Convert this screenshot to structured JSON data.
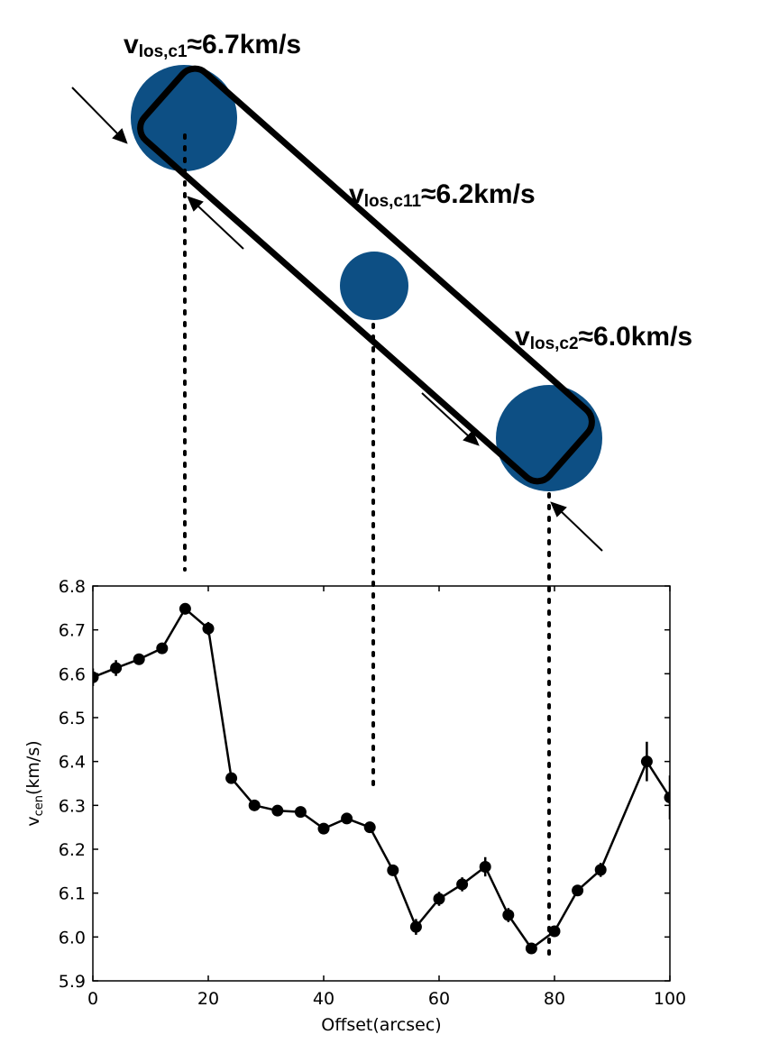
{
  "annotations": [
    {
      "v": "v",
      "sub": "los,c1",
      "value": "≈6.7km/s"
    },
    {
      "v": "v",
      "sub": "los,c11",
      "value": "≈6.2km/s"
    },
    {
      "v": "v",
      "sub": "los,c2",
      "value": "≈6.0km/s"
    }
  ],
  "colors": {
    "clump": "#0d4f84",
    "line": "#000000"
  },
  "chart_data": {
    "type": "line",
    "xlabel": "Offset(arcsec)",
    "ylabel_main": "v",
    "ylabel_sub": "cen",
    "ylabel_unit": "(km/s)",
    "xlim": [
      0,
      100
    ],
    "ylim": [
      5.9,
      6.8
    ],
    "xticks": [
      "0",
      "20",
      "40",
      "60",
      "80",
      "100"
    ],
    "yticks": [
      "5.9",
      "6.0",
      "6.1",
      "6.2",
      "6.3",
      "6.4",
      "6.5",
      "6.6",
      "6.7",
      "6.8"
    ],
    "grid": false,
    "series": [
      {
        "x": [
          0,
          4,
          8,
          12,
          16,
          20,
          24,
          28,
          32,
          36,
          40,
          44,
          48,
          52,
          56,
          60,
          64,
          68,
          72,
          76,
          80,
          84,
          88,
          96,
          100
        ],
        "y": [
          6.592,
          6.613,
          6.633,
          6.658,
          6.748,
          6.703,
          6.362,
          6.3,
          6.288,
          6.285,
          6.247,
          6.27,
          6.25,
          6.152,
          6.023,
          6.087,
          6.12,
          6.16,
          6.05,
          5.974,
          6.013,
          6.106,
          6.153,
          6.4,
          6.318
        ],
        "err": [
          0.02,
          0.018,
          0.012,
          0.01,
          0.013,
          0.015,
          0.01,
          0.008,
          0.008,
          0.01,
          0.01,
          0.01,
          0.01,
          0.01,
          0.018,
          0.016,
          0.016,
          0.022,
          0.016,
          0.01,
          0.012,
          0.01,
          0.016,
          0.045,
          0.05
        ]
      }
    ]
  }
}
